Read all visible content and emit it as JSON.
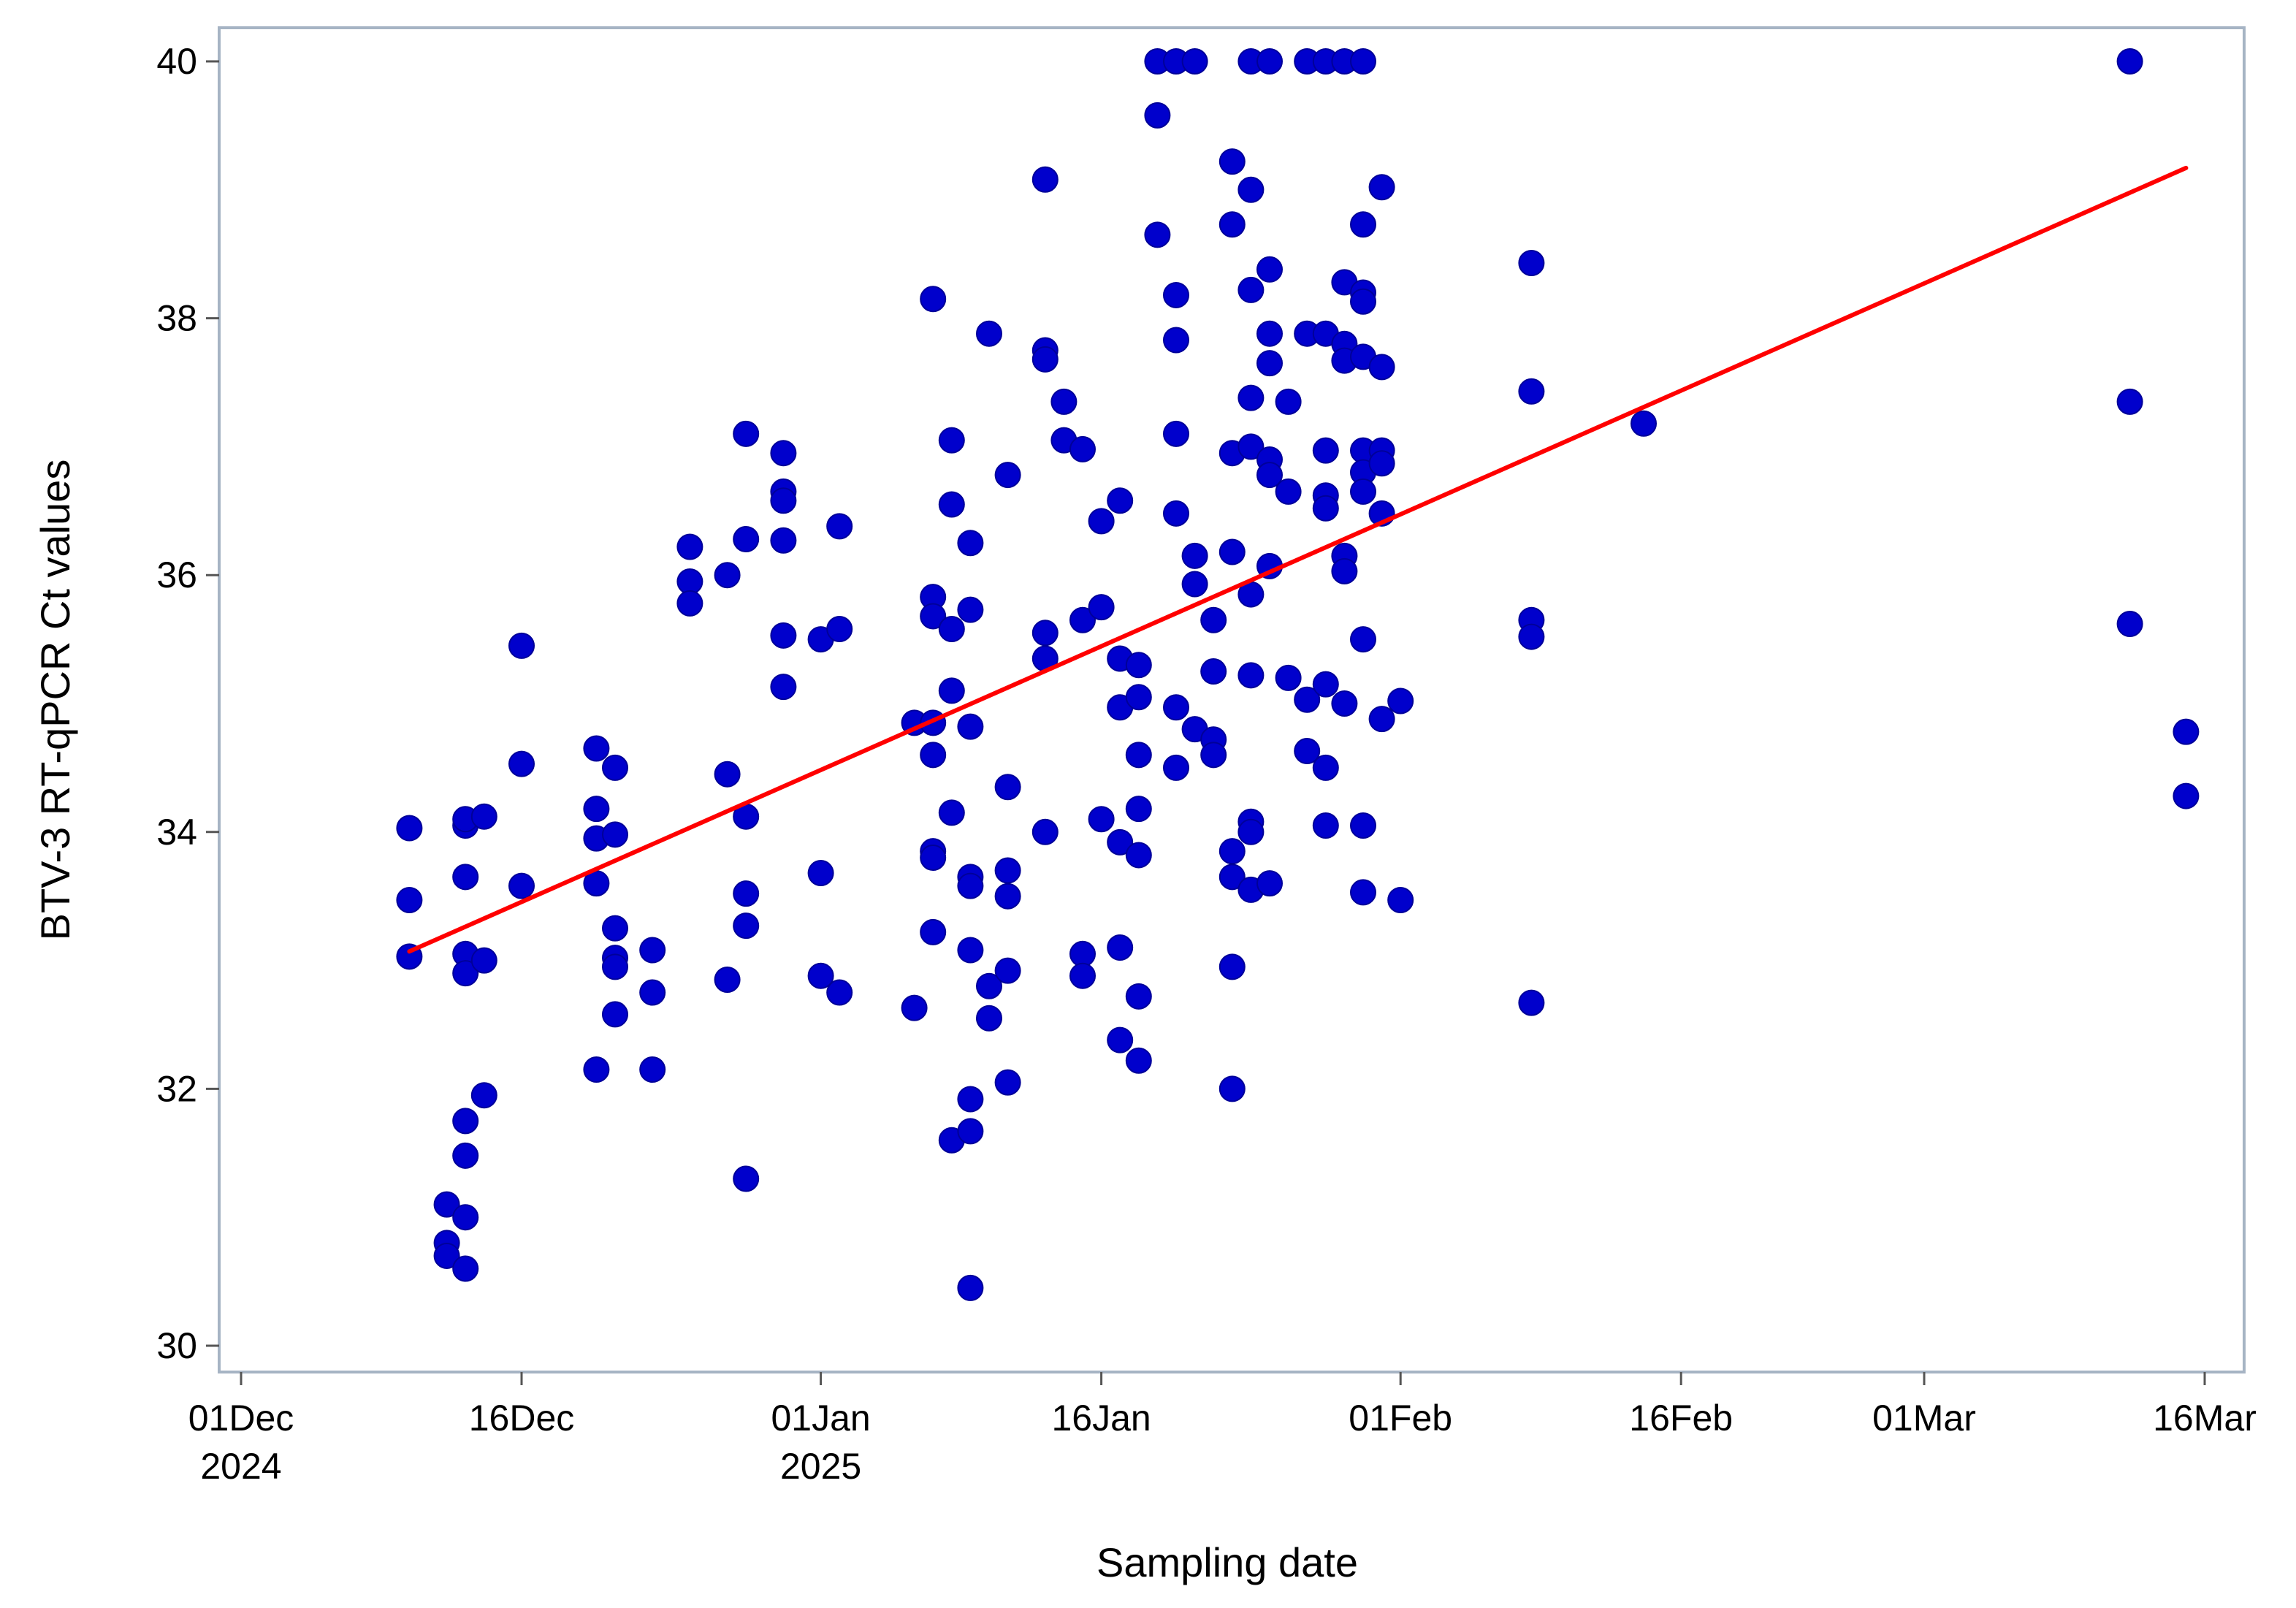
{
  "chart_data": {
    "type": "scatter",
    "title": "",
    "xlabel": "Sampling date",
    "ylabel": "BTV-3 RT-qPCR  Ct values",
    "xlim": [
      "2024-11-30",
      "2025-03-16"
    ],
    "ylim": [
      29.7,
      40.3
    ],
    "grid": false,
    "legend": "none",
    "x_ticks": [
      {
        "date": "2024-12-01",
        "label": [
          "01Dec",
          "2024"
        ]
      },
      {
        "date": "2024-12-16",
        "label": [
          "16Dec"
        ]
      },
      {
        "date": "2025-01-01",
        "label": [
          "01Jan",
          "2025"
        ]
      },
      {
        "date": "2025-01-16",
        "label": [
          "16Jan"
        ]
      },
      {
        "date": "2025-02-01",
        "label": [
          "01Feb"
        ]
      },
      {
        "date": "2025-02-16",
        "label": [
          "16Feb"
        ]
      },
      {
        "date": "2025-03-01",
        "label": [
          "01Mar"
        ]
      },
      {
        "date": "2025-03-16",
        "label": [
          "16Mar"
        ]
      }
    ],
    "y_ticks": [
      30,
      32,
      34,
      36,
      38,
      40
    ],
    "colors": {
      "points": "#0000cc",
      "regression": "#ff0000",
      "frame": "#a6b4c4"
    },
    "regression_line": {
      "x": [
        "2024-12-10",
        "2025-03-15"
      ],
      "y": [
        33.07,
        39.17
      ]
    },
    "series": [
      {
        "points": [
          [
            "2024-12-10",
            34.03
          ],
          [
            "2024-12-10",
            33.47
          ],
          [
            "2024-12-10",
            33.03
          ],
          [
            "2024-12-12",
            31.1
          ],
          [
            "2024-12-12",
            30.8
          ],
          [
            "2024-12-12",
            30.7
          ],
          [
            "2024-12-13",
            34.05
          ],
          [
            "2024-12-13",
            34.1
          ],
          [
            "2024-12-13",
            33.65
          ],
          [
            "2024-12-13",
            33.05
          ],
          [
            "2024-12-13",
            32.9
          ],
          [
            "2024-12-13",
            31.75
          ],
          [
            "2024-12-13",
            31.48
          ],
          [
            "2024-12-13",
            31.0
          ],
          [
            "2024-12-13",
            30.6
          ],
          [
            "2024-12-14",
            34.12
          ],
          [
            "2024-12-14",
            33.0
          ],
          [
            "2024-12-14",
            31.95
          ],
          [
            "2024-12-16",
            35.45
          ],
          [
            "2024-12-16",
            34.53
          ],
          [
            "2024-12-16",
            33.58
          ],
          [
            "2024-12-20",
            34.65
          ],
          [
            "2024-12-20",
            34.18
          ],
          [
            "2024-12-20",
            33.95
          ],
          [
            "2024-12-20",
            33.6
          ],
          [
            "2024-12-20",
            32.15
          ],
          [
            "2024-12-21",
            34.5
          ],
          [
            "2024-12-21",
            33.98
          ],
          [
            "2024-12-21",
            33.25
          ],
          [
            "2024-12-21",
            33.02
          ],
          [
            "2024-12-21",
            32.95
          ],
          [
            "2024-12-21",
            32.58
          ],
          [
            "2024-12-23",
            33.08
          ],
          [
            "2024-12-23",
            32.75
          ],
          [
            "2024-12-23",
            32.15
          ],
          [
            "2024-12-25",
            36.22
          ],
          [
            "2024-12-25",
            35.95
          ],
          [
            "2024-12-25",
            35.78
          ],
          [
            "2024-12-27",
            36.0
          ],
          [
            "2024-12-27",
            34.45
          ],
          [
            "2024-12-27",
            32.85
          ],
          [
            "2024-12-28",
            37.1
          ],
          [
            "2024-12-28",
            36.28
          ],
          [
            "2024-12-28",
            34.12
          ],
          [
            "2024-12-28",
            33.52
          ],
          [
            "2024-12-28",
            33.27
          ],
          [
            "2024-12-28",
            31.3
          ],
          [
            "2024-12-30",
            36.95
          ],
          [
            "2024-12-30",
            36.65
          ],
          [
            "2024-12-30",
            36.58
          ],
          [
            "2024-12-30",
            36.27
          ],
          [
            "2024-12-30",
            35.53
          ],
          [
            "2024-12-30",
            35.13
          ],
          [
            "2025-01-01",
            35.5
          ],
          [
            "2025-01-01",
            33.68
          ],
          [
            "2025-01-01",
            32.88
          ],
          [
            "2025-01-02",
            36.38
          ],
          [
            "2025-01-02",
            35.58
          ],
          [
            "2025-01-02",
            32.75
          ],
          [
            "2025-01-06",
            34.85
          ],
          [
            "2025-01-06",
            32.63
          ],
          [
            "2025-01-07",
            38.15
          ],
          [
            "2025-01-07",
            35.83
          ],
          [
            "2025-01-07",
            35.68
          ],
          [
            "2025-01-07",
            34.85
          ],
          [
            "2025-01-07",
            34.6
          ],
          [
            "2025-01-07",
            33.85
          ],
          [
            "2025-01-07",
            33.8
          ],
          [
            "2025-01-07",
            33.22
          ],
          [
            "2025-01-08",
            37.05
          ],
          [
            "2025-01-08",
            36.55
          ],
          [
            "2025-01-08",
            35.58
          ],
          [
            "2025-01-08",
            35.1
          ],
          [
            "2025-01-08",
            34.15
          ],
          [
            "2025-01-08",
            31.6
          ],
          [
            "2025-01-09",
            36.25
          ],
          [
            "2025-01-09",
            35.73
          ],
          [
            "2025-01-09",
            34.82
          ],
          [
            "2025-01-09",
            33.65
          ],
          [
            "2025-01-09",
            33.58
          ],
          [
            "2025-01-09",
            33.08
          ],
          [
            "2025-01-09",
            31.92
          ],
          [
            "2025-01-09",
            31.67
          ],
          [
            "2025-01-09",
            30.45
          ],
          [
            "2025-01-10",
            37.88
          ],
          [
            "2025-01-10",
            32.8
          ],
          [
            "2025-01-10",
            32.55
          ],
          [
            "2025-01-11",
            36.78
          ],
          [
            "2025-01-11",
            34.35
          ],
          [
            "2025-01-11",
            33.7
          ],
          [
            "2025-01-11",
            33.5
          ],
          [
            "2025-01-11",
            32.92
          ],
          [
            "2025-01-11",
            32.05
          ],
          [
            "2025-01-13",
            39.08
          ],
          [
            "2025-01-13",
            37.75
          ],
          [
            "2025-01-13",
            37.68
          ],
          [
            "2025-01-13",
            35.55
          ],
          [
            "2025-01-13",
            35.35
          ],
          [
            "2025-01-13",
            34.0
          ],
          [
            "2025-01-14",
            37.35
          ],
          [
            "2025-01-14",
            37.05
          ],
          [
            "2025-01-15",
            36.98
          ],
          [
            "2025-01-15",
            35.65
          ],
          [
            "2025-01-15",
            33.05
          ],
          [
            "2025-01-15",
            32.88
          ],
          [
            "2025-01-16",
            36.42
          ],
          [
            "2025-01-16",
            35.75
          ],
          [
            "2025-01-16",
            34.1
          ],
          [
            "2025-01-17",
            36.58
          ],
          [
            "2025-01-17",
            35.35
          ],
          [
            "2025-01-17",
            34.97
          ],
          [
            "2025-01-17",
            33.92
          ],
          [
            "2025-01-17",
            33.1
          ],
          [
            "2025-01-17",
            32.38
          ],
          [
            "2025-01-18",
            35.3
          ],
          [
            "2025-01-18",
            35.05
          ],
          [
            "2025-01-18",
            34.6
          ],
          [
            "2025-01-18",
            34.18
          ],
          [
            "2025-01-18",
            33.82
          ],
          [
            "2025-01-18",
            32.72
          ],
          [
            "2025-01-18",
            32.22
          ],
          [
            "2025-01-19",
            40.0
          ],
          [
            "2025-01-19",
            39.58
          ],
          [
            "2025-01-19",
            38.65
          ],
          [
            "2025-01-20",
            40.0
          ],
          [
            "2025-01-20",
            38.18
          ],
          [
            "2025-01-20",
            37.83
          ],
          [
            "2025-01-20",
            37.1
          ],
          [
            "2025-01-20",
            36.48
          ],
          [
            "2025-01-20",
            34.97
          ],
          [
            "2025-01-20",
            34.5
          ],
          [
            "2025-01-21",
            40.0
          ],
          [
            "2025-01-21",
            36.15
          ],
          [
            "2025-01-21",
            35.93
          ],
          [
            "2025-01-21",
            34.8
          ],
          [
            "2025-01-22",
            35.65
          ],
          [
            "2025-01-22",
            35.25
          ],
          [
            "2025-01-22",
            34.72
          ],
          [
            "2025-01-22",
            34.6
          ],
          [
            "2025-01-23",
            39.22
          ],
          [
            "2025-01-23",
            38.73
          ],
          [
            "2025-01-23",
            36.95
          ],
          [
            "2025-01-23",
            36.18
          ],
          [
            "2025-01-23",
            33.85
          ],
          [
            "2025-01-23",
            33.65
          ],
          [
            "2025-01-23",
            32.95
          ],
          [
            "2025-01-23",
            32.0
          ],
          [
            "2025-01-24",
            40.0
          ],
          [
            "2025-01-24",
            39.0
          ],
          [
            "2025-01-24",
            38.22
          ],
          [
            "2025-01-24",
            37.38
          ],
          [
            "2025-01-24",
            37.0
          ],
          [
            "2025-01-24",
            35.85
          ],
          [
            "2025-01-24",
            35.22
          ],
          [
            "2025-01-24",
            34.08
          ],
          [
            "2025-01-24",
            34.0
          ],
          [
            "2025-01-24",
            33.55
          ],
          [
            "2025-01-25",
            40.0
          ],
          [
            "2025-01-25",
            38.38
          ],
          [
            "2025-01-25",
            37.88
          ],
          [
            "2025-01-25",
            37.65
          ],
          [
            "2025-01-25",
            36.9
          ],
          [
            "2025-01-25",
            36.78
          ],
          [
            "2025-01-25",
            36.07
          ],
          [
            "2025-01-25",
            33.6
          ],
          [
            "2025-01-26",
            37.35
          ],
          [
            "2025-01-26",
            36.65
          ],
          [
            "2025-01-26",
            35.2
          ],
          [
            "2025-01-27",
            40.0
          ],
          [
            "2025-01-27",
            37.88
          ],
          [
            "2025-01-27",
            35.03
          ],
          [
            "2025-01-27",
            34.63
          ],
          [
            "2025-01-28",
            40.0
          ],
          [
            "2025-01-28",
            37.88
          ],
          [
            "2025-01-28",
            36.97
          ],
          [
            "2025-01-28",
            36.62
          ],
          [
            "2025-01-28",
            36.52
          ],
          [
            "2025-01-28",
            35.15
          ],
          [
            "2025-01-28",
            34.5
          ],
          [
            "2025-01-28",
            34.05
          ],
          [
            "2025-01-29",
            40.0
          ],
          [
            "2025-01-29",
            38.28
          ],
          [
            "2025-01-29",
            37.8
          ],
          [
            "2025-01-29",
            37.67
          ],
          [
            "2025-01-29",
            36.15
          ],
          [
            "2025-01-29",
            36.03
          ],
          [
            "2025-01-29",
            35.0
          ],
          [
            "2025-01-30",
            40.0
          ],
          [
            "2025-01-30",
            38.73
          ],
          [
            "2025-01-30",
            38.2
          ],
          [
            "2025-01-30",
            38.13
          ],
          [
            "2025-01-30",
            37.7
          ],
          [
            "2025-01-30",
            36.97
          ],
          [
            "2025-01-30",
            36.8
          ],
          [
            "2025-01-30",
            36.65
          ],
          [
            "2025-01-30",
            35.5
          ],
          [
            "2025-01-30",
            34.05
          ],
          [
            "2025-01-30",
            33.53
          ],
          [
            "2025-01-31",
            39.02
          ],
          [
            "2025-01-31",
            37.62
          ],
          [
            "2025-01-31",
            36.97
          ],
          [
            "2025-01-31",
            36.87
          ],
          [
            "2025-01-31",
            36.48
          ],
          [
            "2025-01-31",
            34.88
          ],
          [
            "2025-02-01",
            35.02
          ],
          [
            "2025-02-01",
            33.47
          ],
          [
            "2025-02-08",
            38.43
          ],
          [
            "2025-02-08",
            37.43
          ],
          [
            "2025-02-08",
            35.65
          ],
          [
            "2025-02-08",
            35.52
          ],
          [
            "2025-02-08",
            32.67
          ],
          [
            "2025-02-14",
            37.18
          ],
          [
            "2025-03-12",
            40.0
          ],
          [
            "2025-03-12",
            37.35
          ],
          [
            "2025-03-12",
            35.62
          ],
          [
            "2025-03-15",
            34.78
          ],
          [
            "2025-03-15",
            34.28
          ]
        ]
      }
    ]
  }
}
